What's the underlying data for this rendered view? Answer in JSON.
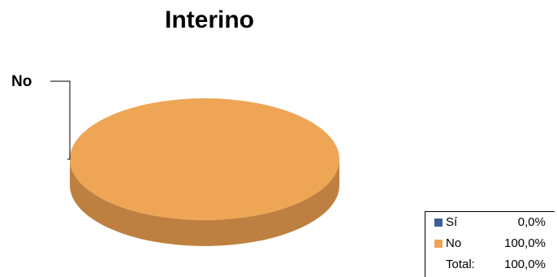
{
  "chart_data": {
    "type": "pie",
    "title": "Interino",
    "categories": [
      "Sí",
      "No"
    ],
    "values": [
      0.0,
      100.0
    ],
    "colors": [
      "#3A5F96",
      "#EEA555"
    ],
    "slice_labels": [
      {
        "category": "No",
        "text": "No"
      }
    ],
    "legend": {
      "placement": "bottom-right",
      "entries": [
        {
          "label": "Sí",
          "value": "0,0%",
          "color": "#3A5F96"
        },
        {
          "label": "No",
          "value": "100,0%",
          "color": "#EEA555"
        }
      ],
      "total_label": "Total:",
      "total_value": "100,0%"
    },
    "style": "3d",
    "side_color": "#BE8040"
  }
}
